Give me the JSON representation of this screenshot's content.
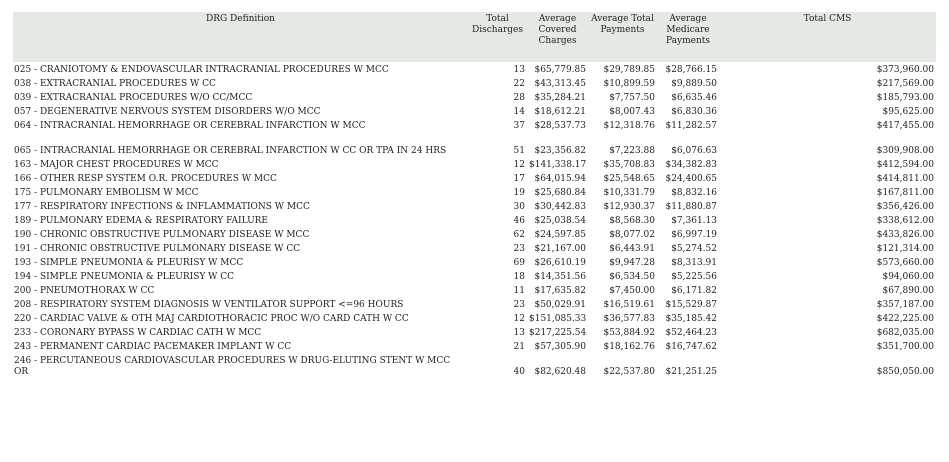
{
  "headers": [
    "DRG Definition",
    "Total Discharges",
    "Average Covered Charges",
    "Average Total Payments",
    "Average Medicare Payments",
    "Total CMS"
  ],
  "rows": [
    [
      "025 - CRANIOTOMY & ENDOVASCULAR INTRACRANIAL PROCEDURES W MCC",
      "13",
      "$65,779.85",
      "$29,789.85",
      "$28,766.15",
      "$373,960.00"
    ],
    [
      "038 - EXTRACRANIAL PROCEDURES W CC",
      "22",
      "$43,313.45",
      "$10,899.59",
      "$9,889.50",
      "$217,569.00"
    ],
    [
      "039 - EXTRACRANIAL PROCEDURES W/O CC/MCC",
      "28",
      "$35,284.21",
      "$7,757.50",
      "$6,635.46",
      "$185,793.00"
    ],
    [
      "057 - DEGENERATIVE NERVOUS SYSTEM DISORDERS W/O MCC",
      "14",
      "$18,612.21",
      "$8,007.43",
      "$6,830.36",
      "$95,625.00"
    ],
    [
      "064 - INTRACRANIAL HEMORRHAGE OR CEREBRAL INFARCTION W MCC",
      "37",
      "$28,537.73",
      "$12,318.76",
      "$11,282.57",
      "$417,455.00"
    ],
    [
      "065 - INTRACRANIAL HEMORRHAGE OR CEREBRAL INFARCTION W CC OR TPA IN 24 HRS",
      "51",
      "$23,356.82",
      "$7,223.88",
      "$6,076.63",
      "$309,908.00"
    ],
    [
      "163 - MAJOR CHEST PROCEDURES W MCC",
      "12",
      "$141,338.17",
      "$35,708.83",
      "$34,382.83",
      "$412,594.00"
    ],
    [
      "166 - OTHER RESP SYSTEM O.R. PROCEDURES W MCC",
      "17",
      "$64,015.94",
      "$25,548.65",
      "$24,400.65",
      "$414,811.00"
    ],
    [
      "175 - PULMONARY EMBOLISM W MCC",
      "19",
      "$25,680.84",
      "$10,331.79",
      "$8,832.16",
      "$167,811.00"
    ],
    [
      "177 - RESPIRATORY INFECTIONS & INFLAMMATIONS W MCC",
      "30",
      "$30,442.83",
      "$12,930.37",
      "$11,880.87",
      "$356,426.00"
    ],
    [
      "189 - PULMONARY EDEMA & RESPIRATORY FAILURE",
      "46",
      "$25,038.54",
      "$8,568.30",
      "$7,361.13",
      "$338,612.00"
    ],
    [
      "190 - CHRONIC OBSTRUCTIVE PULMONARY DISEASE W MCC",
      "62",
      "$24,597.85",
      "$8,077.02",
      "$6,997.19",
      "$433,826.00"
    ],
    [
      "191 - CHRONIC OBSTRUCTIVE PULMONARY DISEASE W CC",
      "23",
      "$21,167.00",
      "$6,443.91",
      "$5,274.52",
      "$121,314.00"
    ],
    [
      "193 - SIMPLE PNEUMONIA & PLEURISY W MCC",
      "69",
      "$26,610.19",
      "$9,947.28",
      "$8,313.91",
      "$573,660.00"
    ],
    [
      "194 - SIMPLE PNEUMONIA & PLEURISY W CC",
      "18",
      "$14,351.56",
      "$6,534.50",
      "$5,225.56",
      "$94,060.00"
    ],
    [
      "200 - PNEUMOTHORAX W CC",
      "11",
      "$17,635.82",
      "$7,450.00",
      "$6,171.82",
      "$67,890.00"
    ],
    [
      "208 - RESPIRATORY SYSTEM DIAGNOSIS W VENTILATOR SUPPORT <=96 HOURS",
      "23",
      "$50,029.91",
      "$16,519.61",
      "$15,529.87",
      "$357,187.00"
    ],
    [
      "220 - CARDIAC VALVE & OTH MAJ CARDIOTHORACIC PROC W/O CARD CATH W CC",
      "12",
      "$151,085.33",
      "$36,577.83",
      "$35,185.42",
      "$422,225.00"
    ],
    [
      "233 - CORONARY BYPASS W CARDIAC CATH W MCC",
      "13",
      "$217,225.54",
      "$53,884.92",
      "$52,464.23",
      "$682,035.00"
    ],
    [
      "243 - PERMANENT CARDIAC PACEMAKER IMPLANT W CC",
      "21",
      "$57,305.90",
      "$18,162.76",
      "$16,747.62",
      "$351,700.00"
    ],
    [
      "246 - PERCUTANEOUS CARDIOVASCULAR PROCEDURES W DRUG-ELUTING STENT W MCC OR",
      "40",
      "$82,620.48",
      "$22,537.80",
      "$21,251.25",
      "$850,050.00"
    ]
  ]
}
